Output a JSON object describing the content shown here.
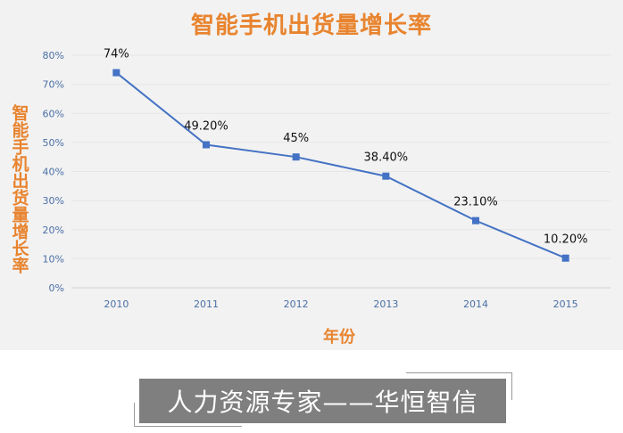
{
  "chart_data": {
    "type": "line",
    "title": "智能手机出货量增长率",
    "xlabel": "年份",
    "ylabel": "智能手机出货量增长率",
    "categories": [
      "2010",
      "2011",
      "2012",
      "2013",
      "2014",
      "2015"
    ],
    "values": [
      74,
      49.2,
      45,
      38.4,
      23.1,
      10.2
    ],
    "data_labels": [
      "74%",
      "49.20%",
      "45%",
      "38.40%",
      "23.10%",
      "10.20%"
    ],
    "y_ticks": [
      "0%",
      "10%",
      "20%",
      "30%",
      "40%",
      "50%",
      "60%",
      "70%",
      "80%"
    ],
    "ylim": [
      0,
      80
    ],
    "grid": true,
    "legend": "none",
    "series_color": "#4472c4",
    "title_color": "#e8842f"
  },
  "banner": {
    "text": "人力资源专家——华恒智信"
  }
}
